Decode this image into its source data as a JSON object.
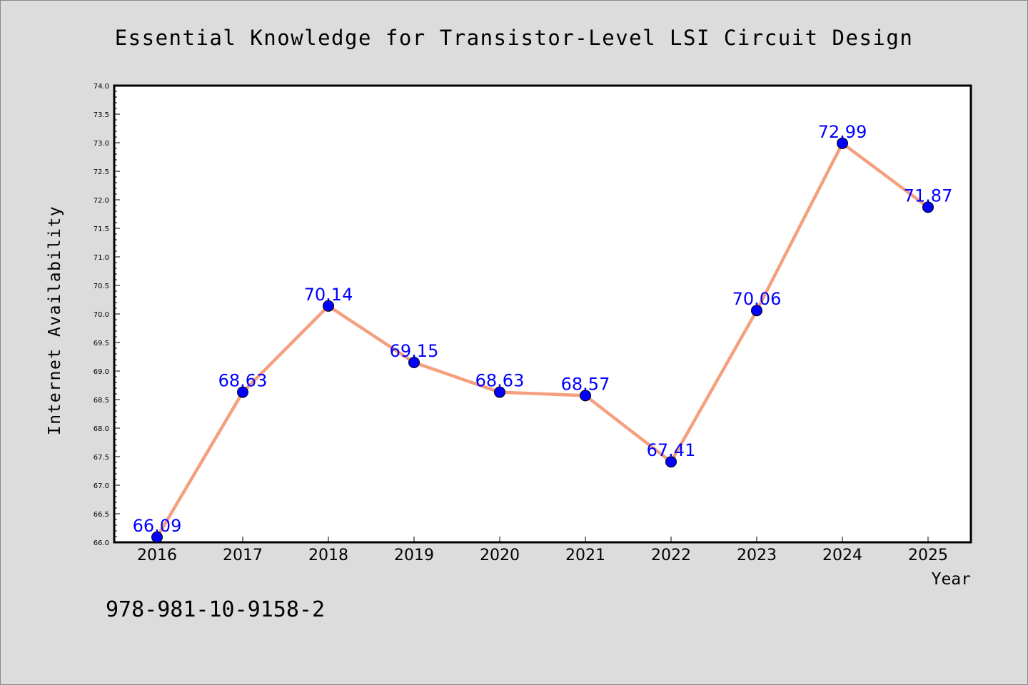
{
  "chart_data": {
    "type": "line",
    "title": "Essential Knowledge for Transistor-Level LSI Circuit Design",
    "xlabel": "Year",
    "ylabel": "Internet Availability",
    "categories": [
      "2016",
      "2017",
      "2018",
      "2019",
      "2020",
      "2021",
      "2022",
      "2023",
      "2024",
      "2025"
    ],
    "values": [
      66.09,
      68.63,
      70.14,
      69.15,
      68.63,
      68.57,
      67.41,
      70.06,
      72.99,
      71.87
    ],
    "data_labels": [
      "66.09",
      "68.63",
      "70.14",
      "69.15",
      "68.63",
      "68.57",
      "67.41",
      "70.06",
      "72.99",
      "71.87"
    ],
    "ylim": [
      66.0,
      74.0
    ],
    "yticks": [
      "66.0",
      "66.5",
      "67.0",
      "67.5",
      "68.0",
      "68.5",
      "69.0",
      "69.5",
      "70.0",
      "70.5",
      "71.0",
      "71.5",
      "72.0",
      "72.5",
      "73.0",
      "73.5",
      "74.0"
    ],
    "grid": false,
    "legend": "none",
    "line_color": "#f4a07f",
    "marker_color": "#0000ff",
    "label_color": "#0000ff",
    "plot_background": "#ffffff",
    "page_background": "#dcdcdc"
  },
  "footer": {
    "isbn": "978-981-10-9158-2"
  }
}
